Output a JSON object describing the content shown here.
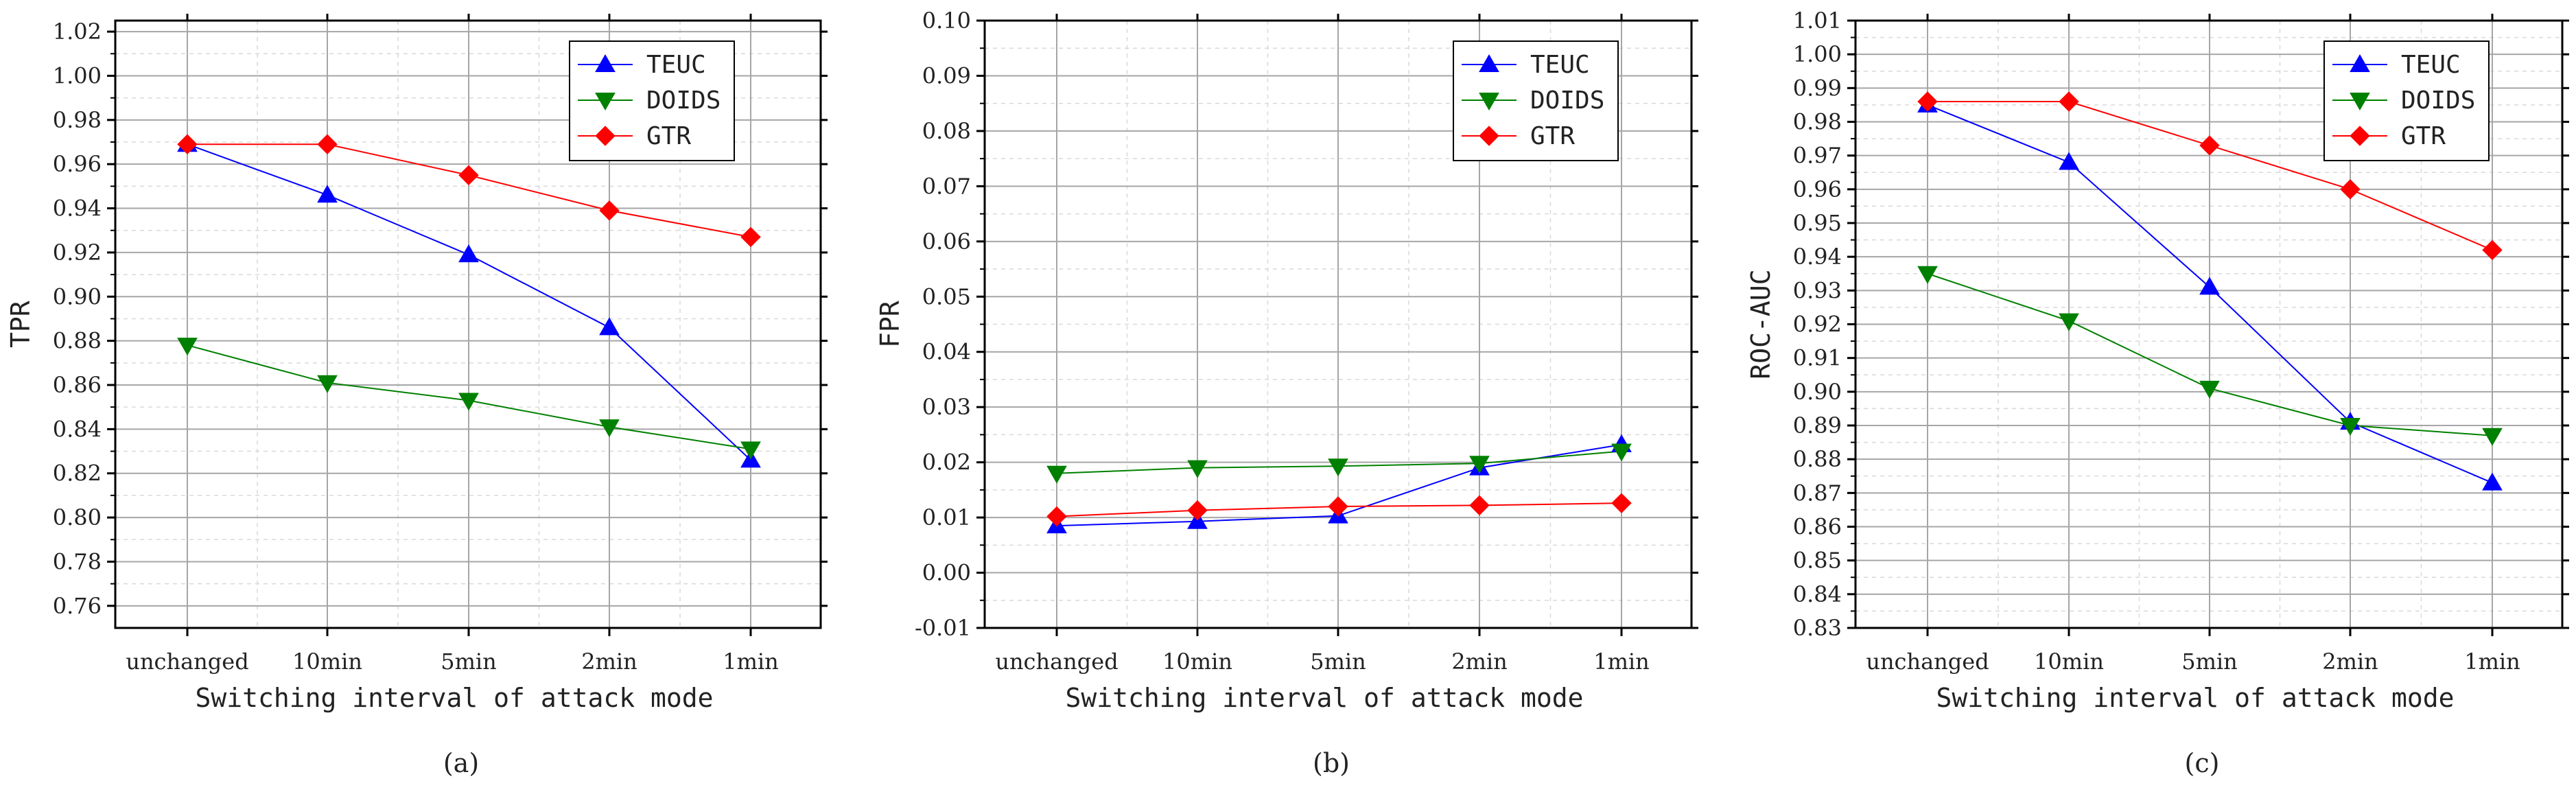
{
  "chart_data": [
    {
      "type": "line",
      "panel_label": "(a)",
      "xlabel": "Switching interval of attack mode",
      "ylabel": "TPR",
      "categories": [
        "unchanged",
        "10min",
        "5min",
        "2min",
        "1min"
      ],
      "ylim": [
        0.75,
        1.025
      ],
      "yticks": [
        0.76,
        0.78,
        0.8,
        0.82,
        0.84,
        0.86,
        0.88,
        0.9,
        0.92,
        0.94,
        0.96,
        0.98,
        1.0,
        1.02
      ],
      "ytick_labels": [
        "0.76",
        "0.78",
        "0.80",
        "0.82",
        "0.84",
        "0.86",
        "0.88",
        "0.90",
        "0.92",
        "0.94",
        "0.96",
        "0.98",
        "1.00",
        "1.02"
      ],
      "grid": true,
      "legend_position": "top-right",
      "series": [
        {
          "name": "TEUC",
          "color": "#0000ff",
          "marker": "triangle-up",
          "values": [
            0.969,
            0.946,
            0.919,
            0.886,
            0.826
          ]
        },
        {
          "name": "DOIDS",
          "color": "#008000",
          "marker": "triangle-down",
          "values": [
            0.878,
            0.861,
            0.853,
            0.841,
            0.831
          ]
        },
        {
          "name": "GTR",
          "color": "#ff0000",
          "marker": "diamond",
          "values": [
            0.969,
            0.969,
            0.955,
            0.939,
            0.927
          ]
        }
      ]
    },
    {
      "type": "line",
      "panel_label": "(b)",
      "xlabel": "Switching interval of attack mode",
      "ylabel": "FPR",
      "categories": [
        "unchanged",
        "10min",
        "5min",
        "2min",
        "1min"
      ],
      "ylim": [
        -0.01,
        0.1
      ],
      "yticks": [
        -0.01,
        0.0,
        0.01,
        0.02,
        0.03,
        0.04,
        0.05,
        0.06,
        0.07,
        0.08,
        0.09,
        0.1
      ],
      "ytick_labels": [
        "-0.01",
        "0.00",
        "0.01",
        "0.02",
        "0.03",
        "0.04",
        "0.05",
        "0.06",
        "0.07",
        "0.08",
        "0.09",
        "0.10"
      ],
      "grid": true,
      "legend_position": "top-right",
      "series": [
        {
          "name": "TEUC",
          "color": "#0000ff",
          "marker": "triangle-up",
          "values": [
            0.0085,
            0.0093,
            0.0103,
            0.019,
            0.0232
          ]
        },
        {
          "name": "DOIDS",
          "color": "#008000",
          "marker": "triangle-down",
          "values": [
            0.018,
            0.019,
            0.0193,
            0.0198,
            0.022
          ]
        },
        {
          "name": "GTR",
          "color": "#ff0000",
          "marker": "diamond",
          "values": [
            0.0102,
            0.0113,
            0.012,
            0.0122,
            0.0126
          ]
        }
      ]
    },
    {
      "type": "line",
      "panel_label": "(c)",
      "xlabel": "Switching interval of attack mode",
      "ylabel": "ROC-AUC",
      "categories": [
        "unchanged",
        "10min",
        "5min",
        "2min",
        "1min"
      ],
      "ylim": [
        0.83,
        1.01
      ],
      "yticks": [
        0.83,
        0.84,
        0.85,
        0.86,
        0.87,
        0.88,
        0.89,
        0.9,
        0.91,
        0.92,
        0.93,
        0.94,
        0.95,
        0.96,
        0.97,
        0.98,
        0.99,
        1.0,
        1.01
      ],
      "ytick_labels": [
        "0.83",
        "0.84",
        "0.85",
        "0.86",
        "0.87",
        "0.88",
        "0.89",
        "0.90",
        "0.91",
        "0.92",
        "0.93",
        "0.94",
        "0.95",
        "0.96",
        "0.97",
        "0.98",
        "0.99",
        "1.00",
        "1.01"
      ],
      "grid": true,
      "legend_position": "top-right",
      "series": [
        {
          "name": "TEUC",
          "color": "#0000ff",
          "marker": "triangle-up",
          "values": [
            0.985,
            0.968,
            0.931,
            0.891,
            0.873
          ]
        },
        {
          "name": "DOIDS",
          "color": "#008000",
          "marker": "triangle-down",
          "values": [
            0.935,
            0.921,
            0.901,
            0.89,
            0.887
          ]
        },
        {
          "name": "GTR",
          "color": "#ff0000",
          "marker": "diamond",
          "values": [
            0.986,
            0.986,
            0.973,
            0.96,
            0.942
          ]
        }
      ]
    }
  ]
}
